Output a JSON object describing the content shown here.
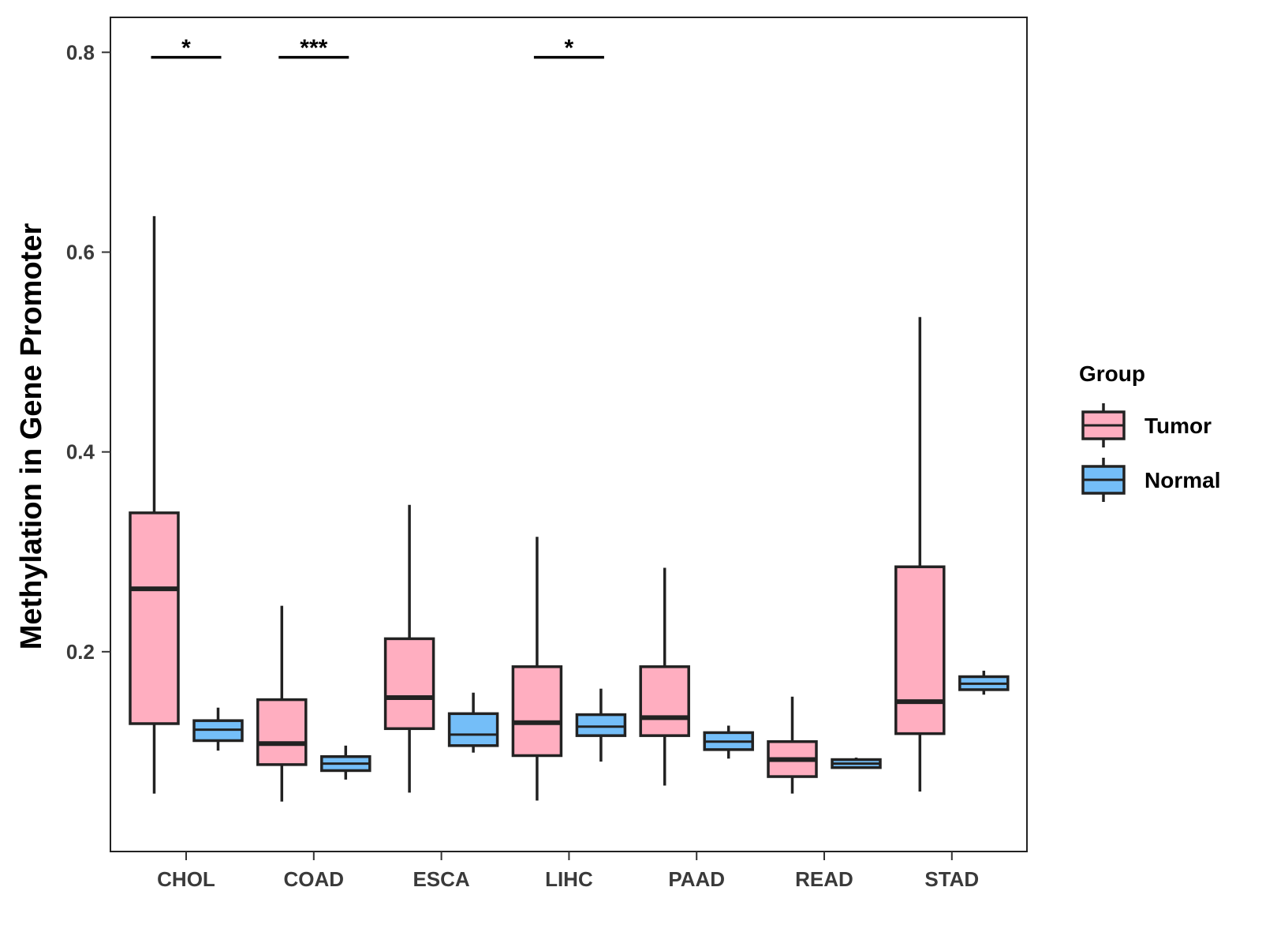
{
  "chart_data": {
    "type": "boxplot",
    "title": "",
    "xlabel": "",
    "ylabel": "Methylation in Gene Promoter",
    "ylim": [
      0.0,
      0.835
    ],
    "yticks": [
      0.2,
      0.4,
      0.6,
      0.8
    ],
    "ytick_labels": [
      "0.2",
      "0.4",
      "0.6",
      "0.8"
    ],
    "categories": [
      "CHOL",
      "COAD",
      "ESCA",
      "LIHC",
      "PAAD",
      "READ",
      "STAD"
    ],
    "grid": false,
    "legend": {
      "title": "Group",
      "position": "right",
      "entries": [
        "Tumor",
        "Normal"
      ]
    },
    "colors": {
      "Tumor": "#FFAEC0",
      "Normal": "#74BEF8",
      "outline": "#222222"
    },
    "series": [
      {
        "name": "Tumor",
        "boxes": [
          {
            "category": "CHOL",
            "whisker_low": 0.058,
            "q1": 0.128,
            "median": 0.263,
            "q3": 0.339,
            "whisker_high": 0.636
          },
          {
            "category": "COAD",
            "whisker_low": 0.05,
            "q1": 0.087,
            "median": 0.108,
            "q3": 0.152,
            "whisker_high": 0.246
          },
          {
            "category": "ESCA",
            "whisker_low": 0.059,
            "q1": 0.123,
            "median": 0.154,
            "q3": 0.213,
            "whisker_high": 0.347
          },
          {
            "category": "LIHC",
            "whisker_low": 0.051,
            "q1": 0.096,
            "median": 0.129,
            "q3": 0.185,
            "whisker_high": 0.315
          },
          {
            "category": "PAAD",
            "whisker_low": 0.066,
            "q1": 0.116,
            "median": 0.134,
            "q3": 0.185,
            "whisker_high": 0.284
          },
          {
            "category": "READ",
            "whisker_low": 0.058,
            "q1": 0.075,
            "median": 0.092,
            "q3": 0.11,
            "whisker_high": 0.155
          },
          {
            "category": "STAD",
            "whisker_low": 0.06,
            "q1": 0.118,
            "median": 0.15,
            "q3": 0.285,
            "whisker_high": 0.535
          }
        ]
      },
      {
        "name": "Normal",
        "boxes": [
          {
            "category": "CHOL",
            "whisker_low": 0.101,
            "q1": 0.111,
            "median": 0.122,
            "q3": 0.131,
            "whisker_high": 0.144
          },
          {
            "category": "COAD",
            "whisker_low": 0.072,
            "q1": 0.081,
            "median": 0.088,
            "q3": 0.095,
            "whisker_high": 0.106
          },
          {
            "category": "ESCA",
            "whisker_low": 0.099,
            "q1": 0.106,
            "median": 0.117,
            "q3": 0.138,
            "whisker_high": 0.159
          },
          {
            "category": "LIHC",
            "whisker_low": 0.09,
            "q1": 0.116,
            "median": 0.125,
            "q3": 0.137,
            "whisker_high": 0.163
          },
          {
            "category": "PAAD",
            "whisker_low": 0.093,
            "q1": 0.102,
            "median": 0.11,
            "q3": 0.119,
            "whisker_high": 0.126
          },
          {
            "category": "READ",
            "whisker_low": 0.084,
            "q1": 0.084,
            "median": 0.088,
            "q3": 0.092,
            "whisker_high": 0.094
          },
          {
            "category": "STAD",
            "whisker_low": 0.157,
            "q1": 0.162,
            "median": 0.168,
            "q3": 0.175,
            "whisker_high": 0.181
          }
        ]
      }
    ],
    "annotations": [
      {
        "category": "CHOL",
        "text": "*",
        "y": 0.795
      },
      {
        "category": "COAD",
        "text": "***",
        "y": 0.795
      },
      {
        "category": "LIHC",
        "text": "*",
        "y": 0.795
      }
    ]
  }
}
